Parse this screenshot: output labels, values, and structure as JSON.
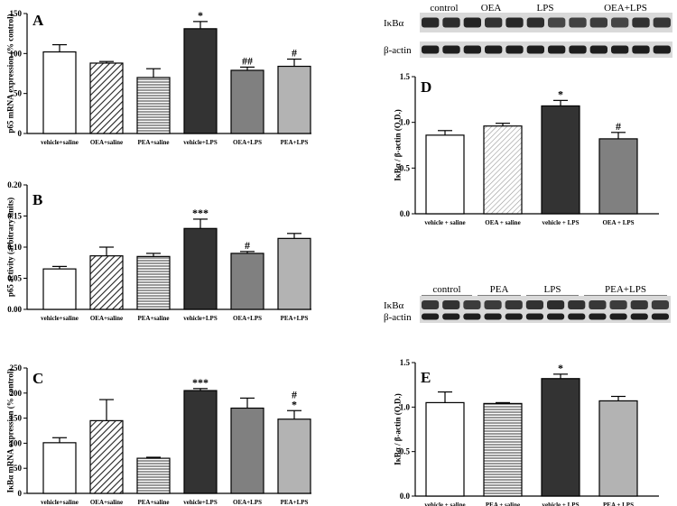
{
  "chart_data": [
    {
      "id": "A",
      "type": "bar",
      "title": "",
      "panel_label": "A",
      "ylabel": "p65 mRNA expression (% control)",
      "ylim": [
        0,
        150
      ],
      "yticks": [
        0,
        50,
        100,
        150
      ],
      "categories": [
        "vehicle+saline",
        "OEA+saline",
        "PEA+saline",
        "vehicle+LPS",
        "OEA+LPS",
        "PEA+LPS"
      ],
      "values": [
        102,
        88,
        70,
        131,
        79,
        84
      ],
      "errors": [
        9,
        2,
        11,
        9,
        4,
        9
      ],
      "annotations": [
        "",
        "",
        "",
        "*",
        "##",
        "#"
      ],
      "fills": [
        "white",
        "diag",
        "hstripe",
        "#333333",
        "#808080",
        "#b3b3b3"
      ]
    },
    {
      "id": "B",
      "type": "bar",
      "title": "",
      "panel_label": "B",
      "ylabel": "p65 activity (arbitrary units)",
      "ylim": [
        0,
        0.2
      ],
      "yticks": [
        0.0,
        0.05,
        0.1,
        0.15,
        0.2
      ],
      "ytick_labels": [
        "0.00",
        "0.05",
        "0.10",
        "0.15",
        "0.20"
      ],
      "categories": [
        "vehicle+saline",
        "OEA+saline",
        "PEA+saline",
        "vehicle+LPS",
        "OEA+LPS",
        "PEA+LPS"
      ],
      "values": [
        0.065,
        0.086,
        0.085,
        0.13,
        0.09,
        0.114
      ],
      "errors": [
        0.004,
        0.014,
        0.005,
        0.015,
        0.003,
        0.008
      ],
      "annotations": [
        "",
        "",
        "",
        "***",
        "#",
        ""
      ],
      "fills": [
        "white",
        "diag",
        "hstripe",
        "#333333",
        "#808080",
        "#b3b3b3"
      ]
    },
    {
      "id": "C",
      "type": "bar",
      "title": "",
      "panel_label": "C",
      "ylabel": "IκBα  mRNA expression (% control)",
      "ylim": [
        0,
        250
      ],
      "yticks": [
        0,
        50,
        100,
        150,
        200,
        250
      ],
      "categories": [
        "vehicle+saline",
        "OEA+saline",
        "PEA+saline",
        "vehicle+LPS",
        "OEA+LPS",
        "PEA+LPS"
      ],
      "values": [
        101,
        145,
        70,
        205,
        170,
        148
      ],
      "errors": [
        10,
        42,
        2,
        4,
        20,
        17
      ],
      "annotations": [
        "",
        "",
        "",
        "***",
        "",
        "#\n*"
      ],
      "fills": [
        "white",
        "diag",
        "hstripe",
        "#333333",
        "#808080",
        "#b3b3b3"
      ]
    },
    {
      "id": "D",
      "type": "bar",
      "title": "",
      "panel_label": "D",
      "ylabel": "IκBα / β-actin (O.D.)",
      "ylim": [
        0,
        1.5
      ],
      "yticks": [
        0.0,
        0.5,
        1.0,
        1.5
      ],
      "ytick_labels": [
        "0.0",
        "0.5",
        "1.0",
        "1.5"
      ],
      "categories": [
        "vehicle + saline",
        "OEA + saline",
        "vehicle + LPS",
        "OEA + LPS"
      ],
      "values": [
        0.86,
        0.96,
        1.18,
        0.82
      ],
      "errors": [
        0.05,
        0.03,
        0.06,
        0.07
      ],
      "annotations": [
        "",
        "",
        "*",
        "#"
      ],
      "fills": [
        "white",
        "diaglight",
        "#333333",
        "#808080"
      ]
    },
    {
      "id": "E",
      "type": "bar",
      "title": "",
      "panel_label": "E",
      "ylabel": "IκBα / β-actin (O.D.)",
      "ylim": [
        0,
        1.5
      ],
      "yticks": [
        0.0,
        0.5,
        1.0,
        1.5
      ],
      "ytick_labels": [
        "0.0",
        "0.5",
        "1.0",
        "1.5"
      ],
      "categories": [
        "vehicle + saline",
        "PEA + saline",
        "vehicle + LPS",
        "PEA + LPS"
      ],
      "values": [
        1.05,
        1.04,
        1.32,
        1.07
      ],
      "errors": [
        0.12,
        0.01,
        0.05,
        0.05
      ],
      "annotations": [
        "",
        "",
        "*",
        ""
      ],
      "fills": [
        "white",
        "hstripe",
        "#333333",
        "#b3b3b3"
      ]
    }
  ],
  "blots": {
    "top": {
      "groups": [
        "control",
        "OEA",
        "LPS",
        "OEA+LPS"
      ],
      "rows": [
        "IκBα",
        "β-actin"
      ]
    },
    "bottom": {
      "groups": [
        "control",
        "PEA",
        "LPS",
        "PEA+LPS"
      ],
      "rows": [
        "IκBα",
        "β-actin"
      ]
    }
  }
}
